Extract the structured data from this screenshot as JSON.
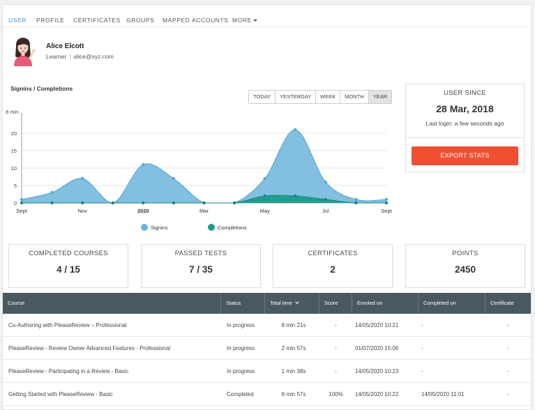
{
  "tabs": [
    {
      "label": "USER",
      "active": true
    },
    {
      "label": "PROFILE",
      "active": false
    },
    {
      "label": "CERTIFICATES",
      "active": false
    },
    {
      "label": "GROUPS",
      "active": false
    },
    {
      "label": "MAPPED ACCOUNTS",
      "active": false
    },
    {
      "label": "MORE",
      "active": false
    }
  ],
  "user": {
    "name": "Alice Elcott",
    "role": "Learner",
    "separator": "|",
    "email": "alice@xyz.com",
    "avatar_icon": "woman-avatar-icon"
  },
  "chart_title": "Signins / Completions",
  "range_buttons": [
    {
      "label": "TODAY",
      "active": false
    },
    {
      "label": "YESTERDAY",
      "active": false
    },
    {
      "label": "WEEK",
      "active": false
    },
    {
      "label": "MONTH",
      "active": false
    },
    {
      "label": "YEAR",
      "active": true
    }
  ],
  "chart_data": {
    "type": "area",
    "title": "Signins / Completions",
    "ytick_labels": [
      "0",
      "5",
      "10",
      "15",
      "20",
      "8 min"
    ],
    "ylim": [
      0,
      25
    ],
    "xtick_labels": [
      {
        "label": "Sept",
        "bold": false
      },
      {
        "label": "Nov",
        "bold": false
      },
      {
        "label": "2020",
        "bold": true
      },
      {
        "label": "Mar",
        "bold": false
      },
      {
        "label": "May",
        "bold": false
      },
      {
        "label": "Jul",
        "bold": false
      },
      {
        "label": "Sept",
        "bold": false
      }
    ],
    "grid": true,
    "legend_position": "bottom",
    "series": [
      {
        "name": "Signins",
        "color": "#6cb4dc",
        "values": [
          1,
          3,
          7,
          0,
          11,
          7,
          0,
          0,
          7,
          21,
          6,
          1,
          1
        ]
      },
      {
        "name": "Completions",
        "color": "#1f9a8a",
        "values": [
          0,
          0,
          0,
          0,
          0,
          0,
          0,
          0,
          2,
          2,
          1,
          0,
          0
        ]
      }
    ]
  },
  "user_since": {
    "label": "USER SINCE",
    "date": "28 Mar, 2018",
    "last_login": "Last login: a few seconds ago",
    "export_label": "EXPORT STATS"
  },
  "stats": [
    {
      "label": "COMPLETED COURSES",
      "value": "4 / 15"
    },
    {
      "label": "PASSED TESTS",
      "value": "7 / 35"
    },
    {
      "label": "CERTIFICATES",
      "value": "2"
    },
    {
      "label": "POINTS",
      "value": "2450"
    }
  ],
  "table": {
    "columns": [
      "Course",
      "Status",
      "Total time",
      "Score",
      "Enroled on",
      "Completed on",
      "Certificate"
    ],
    "rows": [
      [
        "Co-Authoring with PleaseReview – Professional",
        "In progress",
        "8 min 21s",
        "-",
        "14/05/2020 10:21",
        "-",
        "-"
      ],
      [
        "PleaseReview - Review Owner Advanced Features - Professional",
        "In progress",
        "2 min 57s",
        "-",
        "01/07/2020 15:06",
        "-",
        "-"
      ],
      [
        "PleaseReview - Participating in a Review - Basic",
        "In progress",
        "1 min 38s",
        "-",
        "14/05/2020 10:23",
        "-",
        "-"
      ],
      [
        "Getting Started with PleaseReview - Basic",
        "Completed",
        "8 min 57s",
        "100%",
        "14/05/2020 10:22",
        "14/05/2020 11:01",
        "-"
      ]
    ]
  }
}
